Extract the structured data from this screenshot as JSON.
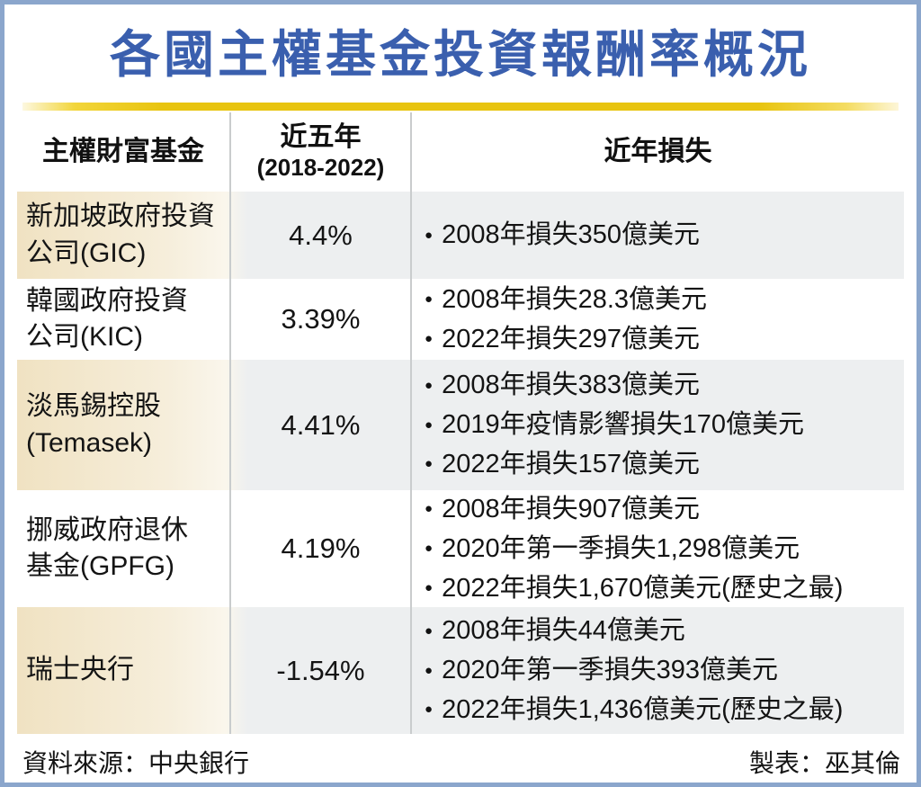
{
  "title": "各國主權基金投資報酬率概況",
  "table": {
    "headers": {
      "fund": "主權財富基金",
      "period_line1": "近五年",
      "period_line2": "(2018-2022)",
      "losses": "近年損失"
    },
    "rows": [
      {
        "name_line1": "新加坡政府投資",
        "name_line2": "公司(GIC)",
        "return": "4.4%",
        "losses": [
          "2008年損失350億美元"
        ]
      },
      {
        "name_line1": "韓國政府投資",
        "name_line2": "公司(KIC)",
        "return": "3.39%",
        "losses": [
          "2008年損失28.3億美元",
          "2022年損失297億美元"
        ]
      },
      {
        "name_line1": "淡馬錫控股",
        "name_line2": "(Temasek)",
        "return": "4.41%",
        "losses": [
          "2008年損失383億美元",
          "2019年疫情影響損失170億美元",
          "2022年損失157億美元"
        ]
      },
      {
        "name_line1": "挪威政府退休",
        "name_line2": "基金(GPFG)",
        "return": "4.19%",
        "losses": [
          "2008年損失907億美元",
          "2020年第一季損失1,298億美元",
          "2022年損失1,670億美元(歷史之最)"
        ]
      },
      {
        "name_line1": "瑞士央行",
        "name_line2": "",
        "return": "-1.54%",
        "losses": [
          "2008年損失44億美元",
          "2020年第一季損失393億美元",
          "2022年損失1,436億美元(歷史之最)"
        ]
      }
    ]
  },
  "footer": {
    "source": "資料來源：中央銀行",
    "credit": "製表：巫其倫"
  },
  "icons": {
    "bullet": "●"
  },
  "colors": {
    "title_blue": "#3a5fae",
    "gold": "#e8c40f",
    "frame_blue": "#8ba6cc",
    "row_beige": "#f0e2c2",
    "row_gray": "#edeff0"
  }
}
